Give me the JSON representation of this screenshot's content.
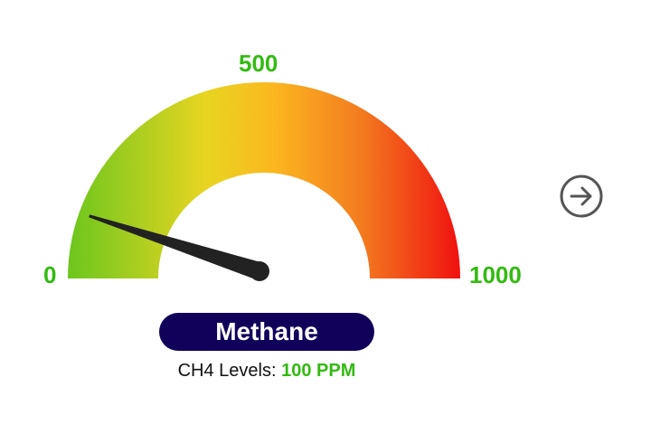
{
  "gauge": {
    "title": "Methane",
    "reading_label": "CH4 Levels:",
    "reading_value": "100 PPM",
    "value": 100,
    "min": 0,
    "max": 1000,
    "tick_labels": {
      "min": "0",
      "mid": "500",
      "max": "1000"
    },
    "gradient_colors": [
      "#6cc61e",
      "#e7d521",
      "#fbb81f",
      "#f37a1f",
      "#f01010"
    ],
    "needle_color": "#222222"
  },
  "colors": {
    "accent_green": "#33bb11",
    "title_pill": "#11005a",
    "icon_gray": "#555555"
  },
  "nav": {
    "next_icon": "arrow-right-circle-icon"
  }
}
